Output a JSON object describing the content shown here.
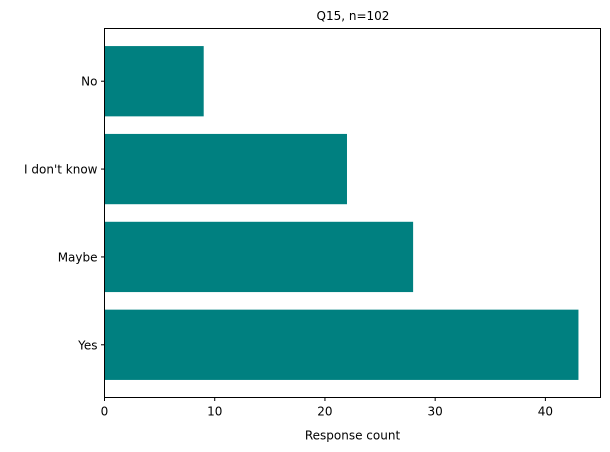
{
  "chart_data": {
    "type": "bar",
    "orientation": "horizontal",
    "title": "Q15, n=102",
    "xlabel": "Response count",
    "ylabel": "",
    "categories": [
      "Yes",
      "Maybe",
      "I don't know",
      "No"
    ],
    "values": [
      43,
      28,
      22,
      9
    ],
    "xlim": [
      0,
      45
    ],
    "xticks": [
      0,
      10,
      20,
      30,
      40
    ],
    "grid": false,
    "bar_color": "#008080"
  }
}
